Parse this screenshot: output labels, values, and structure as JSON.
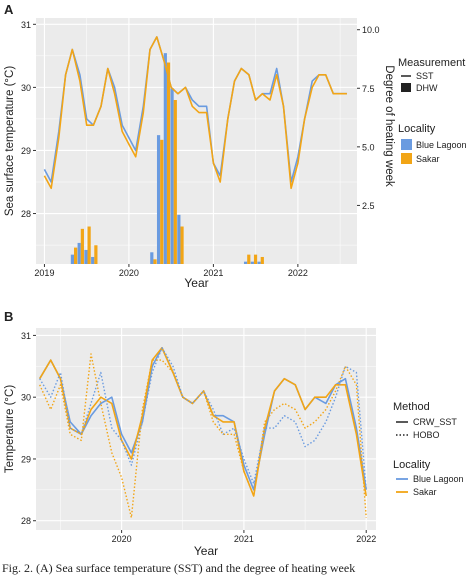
{
  "chart_data": [
    {
      "panel": "A",
      "type": "line",
      "xlabel": "Year",
      "ylabel": "Sea surface temperature (°C)",
      "y2label": "Degree of heating week",
      "xticks": [
        "2019",
        "2020",
        "2021",
        "2022"
      ],
      "xlim": [
        2018.9,
        2022.7
      ],
      "ylim": [
        27.2,
        31.1
      ],
      "yticks": [
        "28",
        "29",
        "30",
        "31"
      ],
      "y2lim": [
        0,
        10.5
      ],
      "y2ticks": [
        "2.5",
        "5.0",
        "7.5",
        "10.0"
      ],
      "legend_measurement": {
        "title": "Measurement",
        "items": [
          "SST",
          "DHW"
        ]
      },
      "legend_locality": {
        "title": "Locality",
        "items": [
          "Blue Lagoon",
          "Sakar"
        ]
      },
      "colors": {
        "blue_lagoon": "#6a9be0",
        "sakar": "#f2a516"
      },
      "series": [
        {
          "name": "Blue Lagoon",
          "x": [
            2019.0,
            2019.08,
            2019.17,
            2019.25,
            2019.33,
            2019.42,
            2019.5,
            2019.58,
            2019.67,
            2019.75,
            2019.83,
            2019.92,
            2020.0,
            2020.08,
            2020.17,
            2020.25,
            2020.33,
            2020.42,
            2020.5,
            2020.58,
            2020.67,
            2020.75,
            2020.83,
            2020.92,
            2021.0,
            2021.08,
            2021.17,
            2021.25,
            2021.33,
            2021.42,
            2021.5,
            2021.58,
            2021.67,
            2021.75,
            2021.83,
            2021.92,
            2022.0,
            2022.08,
            2022.17,
            2022.25,
            2022.33,
            2022.42,
            2022.5,
            2022.58
          ],
          "values": [
            28.7,
            28.5,
            29.3,
            30.2,
            30.6,
            30.2,
            29.5,
            29.4,
            29.7,
            30.3,
            30.0,
            29.4,
            29.2,
            29.0,
            29.7,
            30.6,
            30.8,
            30.4,
            30.0,
            29.9,
            30.0,
            29.8,
            29.7,
            29.7,
            28.8,
            28.6,
            29.5,
            30.1,
            30.3,
            30.2,
            29.8,
            29.9,
            29.9,
            30.3,
            29.7,
            28.5,
            28.9,
            29.5,
            30.1,
            30.2,
            30.2,
            29.9,
            29.9,
            29.9
          ]
        },
        {
          "name": "Sakar",
          "x": [
            2019.0,
            2019.08,
            2019.17,
            2019.25,
            2019.33,
            2019.42,
            2019.5,
            2019.58,
            2019.67,
            2019.75,
            2019.83,
            2019.92,
            2020.0,
            2020.08,
            2020.17,
            2020.25,
            2020.33,
            2020.42,
            2020.5,
            2020.58,
            2020.67,
            2020.75,
            2020.83,
            2020.92,
            2021.0,
            2021.08,
            2021.17,
            2021.25,
            2021.33,
            2021.42,
            2021.5,
            2021.58,
            2021.67,
            2021.75,
            2021.83,
            2021.92,
            2022.0,
            2022.08,
            2022.17,
            2022.25,
            2022.33,
            2022.42,
            2022.5,
            2022.58
          ],
          "values": [
            28.6,
            28.4,
            29.2,
            30.2,
            30.6,
            30.1,
            29.4,
            29.4,
            29.7,
            30.3,
            29.9,
            29.3,
            29.1,
            28.9,
            29.6,
            30.6,
            30.8,
            30.4,
            30.0,
            29.9,
            30.0,
            29.7,
            29.6,
            29.6,
            28.8,
            28.5,
            29.5,
            30.1,
            30.3,
            30.2,
            29.8,
            29.9,
            29.8,
            30.2,
            29.7,
            28.4,
            28.8,
            29.5,
            30.0,
            30.2,
            30.2,
            29.9,
            29.9,
            29.9
          ]
        }
      ],
      "bars": [
        {
          "name": "Blue Lagoon",
          "x": [
            2019.35,
            2019.43,
            2019.51,
            2019.59,
            2020.29,
            2020.37,
            2020.45,
            2020.53,
            2020.61,
            2021.4,
            2021.48,
            2021.56
          ],
          "values": [
            0.4,
            0.9,
            0.6,
            0.3,
            0.5,
            5.5,
            9.0,
            7.5,
            2.1,
            0.1,
            0.1,
            0.1
          ]
        },
        {
          "name": "Sakar",
          "x": [
            2019.35,
            2019.43,
            2019.51,
            2019.59,
            2020.29,
            2020.37,
            2020.45,
            2020.53,
            2020.61,
            2021.4,
            2021.48,
            2021.56
          ],
          "values": [
            0.7,
            1.5,
            1.6,
            0.8,
            0.2,
            5.3,
            8.6,
            7.0,
            1.6,
            0.4,
            0.4,
            0.3
          ]
        }
      ]
    },
    {
      "panel": "B",
      "type": "line",
      "xlabel": "Year",
      "ylabel": "Temperature (°C)",
      "xticks": [
        "2020",
        "2021",
        "2022"
      ],
      "xlim": [
        2019.3,
        2022.08
      ],
      "ylim": [
        27.85,
        31.12
      ],
      "yticks": [
        "28",
        "29",
        "30",
        "31"
      ],
      "legend_method": {
        "title": "Method",
        "items": [
          "CRW_SST",
          "HOBO"
        ]
      },
      "legend_locality": {
        "title": "Locality",
        "items": [
          "Blue Lagoon",
          "Sakar"
        ]
      },
      "colors": {
        "blue_lagoon": "#6a9be0",
        "sakar": "#f2a516"
      },
      "series": [
        {
          "name": "Blue Lagoon CRW_SST",
          "x": [
            2019.33,
            2019.42,
            2019.5,
            2019.58,
            2019.67,
            2019.75,
            2019.83,
            2019.92,
            2020.0,
            2020.08,
            2020.17,
            2020.25,
            2020.33,
            2020.42,
            2020.5,
            2020.58,
            2020.67,
            2020.75,
            2020.83,
            2020.92,
            2021.0,
            2021.08,
            2021.17,
            2021.25,
            2021.33,
            2021.42,
            2021.5,
            2021.58,
            2021.67,
            2021.75,
            2021.83,
            2021.92,
            2022.0
          ],
          "values": [
            30.3,
            30.6,
            30.3,
            29.6,
            29.4,
            29.7,
            29.9,
            30.0,
            29.4,
            29.1,
            29.6,
            30.5,
            30.8,
            30.4,
            30.0,
            29.9,
            30.1,
            29.7,
            29.7,
            29.6,
            28.9,
            28.5,
            29.4,
            30.1,
            30.3,
            30.2,
            29.8,
            30.0,
            29.9,
            30.2,
            30.3,
            29.5,
            28.5
          ]
        },
        {
          "name": "Sakar CRW_SST",
          "x": [
            2019.33,
            2019.42,
            2019.5,
            2019.58,
            2019.67,
            2019.75,
            2019.83,
            2019.92,
            2020.0,
            2020.08,
            2020.17,
            2020.25,
            2020.33,
            2020.42,
            2020.5,
            2020.58,
            2020.67,
            2020.75,
            2020.83,
            2020.92,
            2021.0,
            2021.08,
            2021.17,
            2021.25,
            2021.33,
            2021.42,
            2021.5,
            2021.58,
            2021.67,
            2021.75,
            2021.83,
            2021.92,
            2022.0
          ],
          "values": [
            30.3,
            30.6,
            30.3,
            29.5,
            29.4,
            29.8,
            30.0,
            29.9,
            29.3,
            29.0,
            29.7,
            30.6,
            30.8,
            30.4,
            30.0,
            29.9,
            30.1,
            29.7,
            29.6,
            29.6,
            28.8,
            28.4,
            29.5,
            30.1,
            30.3,
            30.2,
            29.8,
            30.0,
            30.0,
            30.2,
            30.2,
            29.4,
            28.4
          ]
        },
        {
          "name": "Blue Lagoon HOBO",
          "x": [
            2019.33,
            2019.42,
            2019.5,
            2019.58,
            2019.67,
            2019.75,
            2019.83,
            2019.92,
            2020.0,
            2020.08,
            2020.17,
            2020.25,
            2020.33,
            2020.42,
            2020.5,
            2020.58,
            2020.67,
            2020.75,
            2020.83,
            2020.92,
            2021.0,
            2021.08,
            2021.17,
            2021.25,
            2021.33,
            2021.42,
            2021.5,
            2021.58,
            2021.67,
            2021.75,
            2021.83,
            2021.92,
            2022.0
          ],
          "values": [
            30.3,
            30.0,
            30.4,
            29.5,
            29.4,
            29.9,
            30.4,
            29.5,
            29.3,
            28.9,
            29.6,
            30.4,
            30.8,
            30.5,
            30.0,
            29.9,
            30.1,
            29.8,
            29.4,
            29.5,
            29.0,
            28.6,
            29.5,
            29.5,
            29.7,
            29.6,
            29.2,
            29.3,
            29.6,
            30.0,
            30.5,
            30.4,
            28.5
          ]
        },
        {
          "name": "Sakar HOBO",
          "x": [
            2019.33,
            2019.42,
            2019.5,
            2019.58,
            2019.67,
            2019.75,
            2019.83,
            2019.92,
            2020.0,
            2020.08,
            2020.17,
            2020.25,
            2020.33,
            2020.42,
            2020.5,
            2020.58,
            2020.67,
            2020.75,
            2020.83,
            2020.92,
            2021.0,
            2021.08,
            2021.17,
            2021.25,
            2021.33,
            2021.42,
            2021.5,
            2021.58,
            2021.67,
            2021.75,
            2021.83,
            2021.92,
            2022.0
          ],
          "values": [
            30.2,
            29.8,
            30.2,
            29.4,
            29.3,
            30.7,
            29.9,
            29.1,
            28.7,
            28.05,
            29.8,
            30.6,
            30.6,
            30.4,
            30.0,
            29.9,
            30.1,
            29.6,
            29.4,
            29.4,
            28.8,
            28.4,
            29.6,
            29.8,
            29.9,
            29.8,
            29.5,
            29.6,
            29.8,
            30.1,
            30.5,
            30.2,
            28.05
          ]
        }
      ]
    }
  ],
  "caption": "Fig. 2.  (A) Sea surface temperature (SST) and the degree of heating week"
}
